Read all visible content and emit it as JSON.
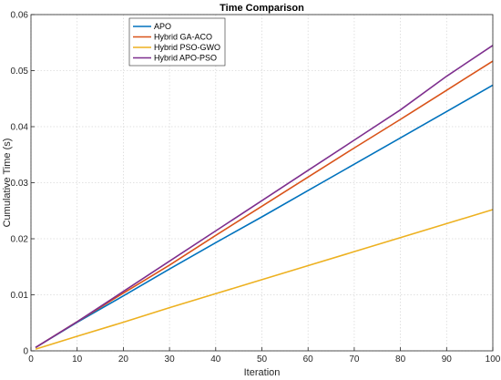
{
  "chart_data": {
    "type": "line",
    "title": "Time Comparison",
    "xlabel": "Iteration",
    "ylabel": "Cumulative Time (s)",
    "xlim": [
      0,
      100
    ],
    "ylim": [
      0,
      0.06
    ],
    "xticks": [
      "0",
      "10",
      "20",
      "30",
      "40",
      "50",
      "60",
      "70",
      "80",
      "90",
      "100"
    ],
    "yticks": [
      "0",
      "0.01",
      "0.02",
      "0.03",
      "0.04",
      "0.05",
      "0.06"
    ],
    "grid": true,
    "legend_position": "top-left",
    "x": [
      1,
      10,
      20,
      30,
      40,
      50,
      60,
      70,
      80,
      90,
      100
    ],
    "series": [
      {
        "name": "APO",
        "color": "#0072BD",
        "values": [
          0.0006,
          0.0051,
          0.0098,
          0.0146,
          0.0193,
          0.0239,
          0.0286,
          0.0333,
          0.038,
          0.0427,
          0.0474
        ]
      },
      {
        "name": "Hybrid GA-ACO",
        "color": "#D95319",
        "values": [
          0.0006,
          0.0052,
          0.0103,
          0.0153,
          0.0206,
          0.0258,
          0.031,
          0.0362,
          0.0413,
          0.0465,
          0.0517
        ]
      },
      {
        "name": "Hybrid PSO-GWO",
        "color": "#EDB120",
        "values": [
          0.0003,
          0.0026,
          0.0051,
          0.0077,
          0.0102,
          0.0127,
          0.0152,
          0.0177,
          0.0202,
          0.0227,
          0.0252
        ]
      },
      {
        "name": "Hybrid APO-PSO",
        "color": "#7E2F8E",
        "values": [
          0.0006,
          0.0052,
          0.0106,
          0.016,
          0.0214,
          0.0268,
          0.0322,
          0.0376,
          0.043,
          0.049,
          0.0545
        ]
      }
    ]
  }
}
